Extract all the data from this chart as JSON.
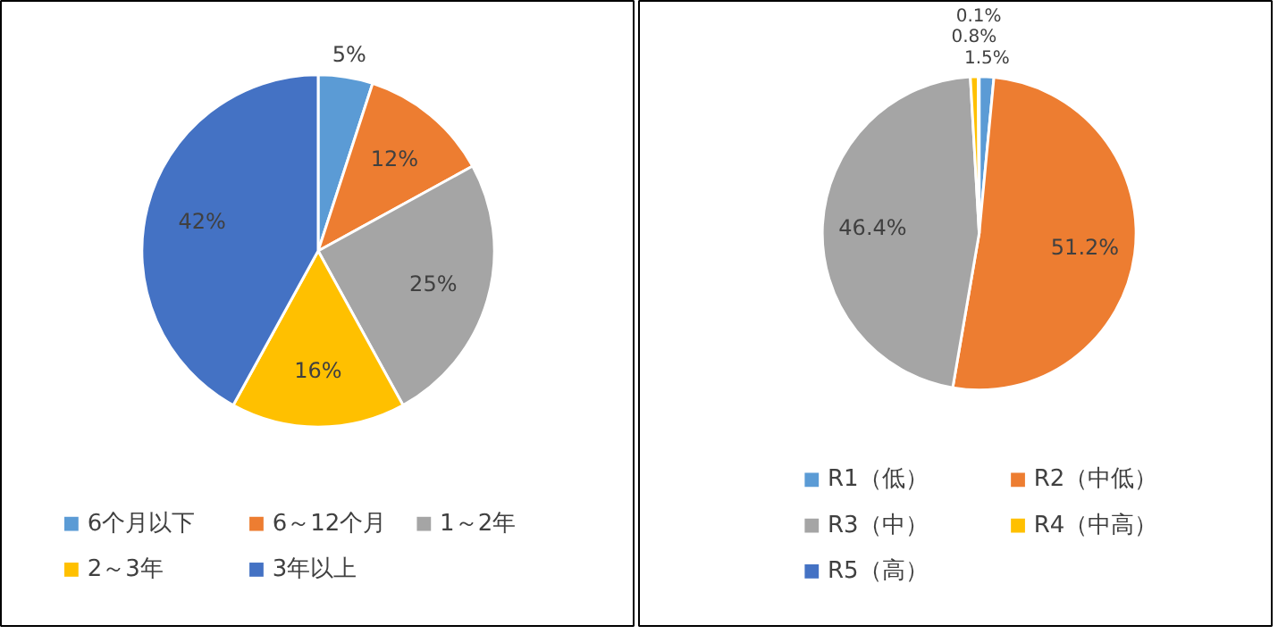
{
  "chart_data": [
    {
      "type": "pie",
      "categories": [
        "6个月以下",
        "6～12个月",
        "1～2年",
        "2～3年",
        "3年以上"
      ],
      "values": [
        5,
        12,
        25,
        16,
        42
      ],
      "value_labels": [
        "5%",
        "12%",
        "25%",
        "16%",
        "42%"
      ],
      "colors": [
        "#5b9bd5",
        "#ed7d31",
        "#a5a5a5",
        "#ffc000",
        "#4472c4"
      ],
      "legend": "bottom"
    },
    {
      "type": "pie",
      "categories": [
        "R1（低）",
        "R2（中低）",
        "R3（中）",
        "R4（中高）",
        "R5（高）"
      ],
      "values": [
        1.5,
        51.2,
        46.4,
        0.8,
        0.1
      ],
      "value_labels": [
        "1.5%",
        "51.2%",
        "46.4%",
        "0.8%",
        "0.1%"
      ],
      "colors": [
        "#5b9bd5",
        "#ed7d31",
        "#a5a5a5",
        "#ffc000",
        "#4472c4"
      ],
      "legend": "bottom"
    }
  ]
}
